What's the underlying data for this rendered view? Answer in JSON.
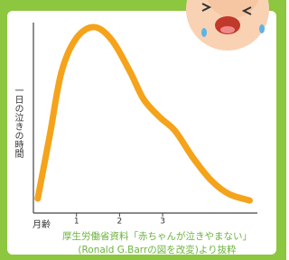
{
  "chart_data": {
    "type": "line",
    "ylabel": "一日の泣きの時間",
    "xlabel": "月齢",
    "source": [
      "厚生労働省資料「赤ちゃんが泣きやまない」",
      "(Ronald G.Barrの図を改変)より抜粋"
    ],
    "x": [
      0.1,
      0.38,
      0.65,
      1.0,
      1.42,
      1.83,
      2.25,
      2.56,
      2.94,
      3.29,
      3.71,
      4.13,
      4.54,
      5.02
    ],
    "values": [
      7.6,
      40.8,
      73.9,
      91.9,
      97.6,
      90.5,
      73.9,
      59.7,
      50.2,
      43.1,
      28.9,
      17.1,
      10,
      6.6
    ],
    "color": "#f5a31a",
    "xlim": [
      0,
      5.2
    ],
    "xticks": [
      1,
      2,
      3
    ],
    "ylim": [
      0,
      100
    ]
  }
}
